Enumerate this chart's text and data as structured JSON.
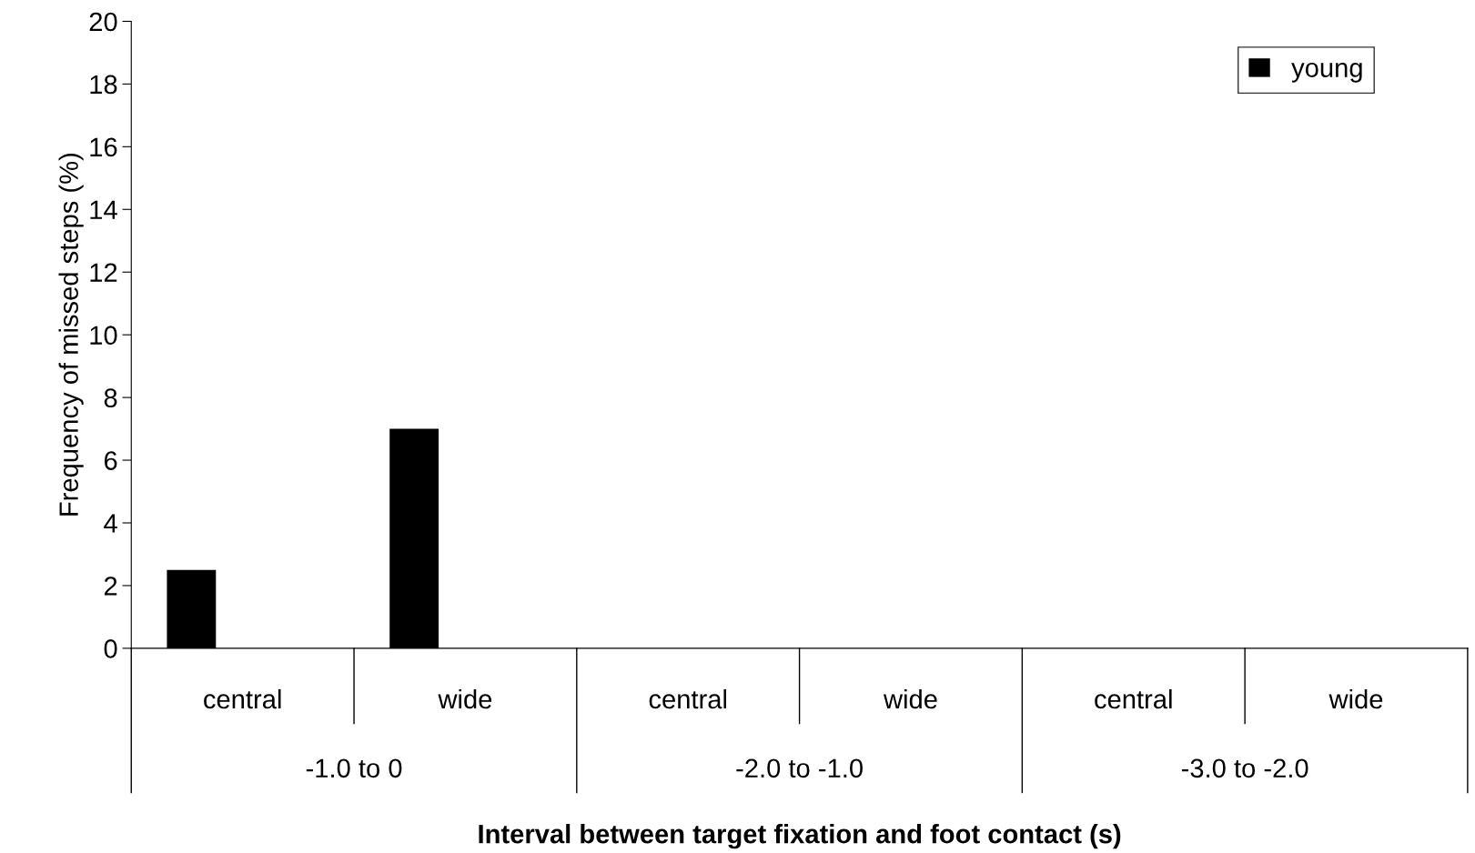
{
  "chart_data": {
    "type": "bar",
    "xlabel": "Interval between target fixation and foot contact (s)",
    "ylabel": "Frequency of missed steps (%)",
    "categories": [
      "central",
      "wide",
      "central",
      "wide",
      "central",
      "wide"
    ],
    "annotations": [
      "-1.0 to 0",
      "-2.0 to -1.0",
      "-3.0 to -2.0"
    ],
    "series": [
      {
        "name": "young",
        "color": "#000000",
        "values": [
          2.5,
          7.0,
          0,
          0,
          0,
          0
        ]
      }
    ],
    "ylim": [
      0,
      20
    ],
    "yticks": [
      0,
      2,
      4,
      6,
      8,
      10,
      12,
      14,
      16,
      18,
      20
    ],
    "grid": false,
    "legend": "top right"
  }
}
